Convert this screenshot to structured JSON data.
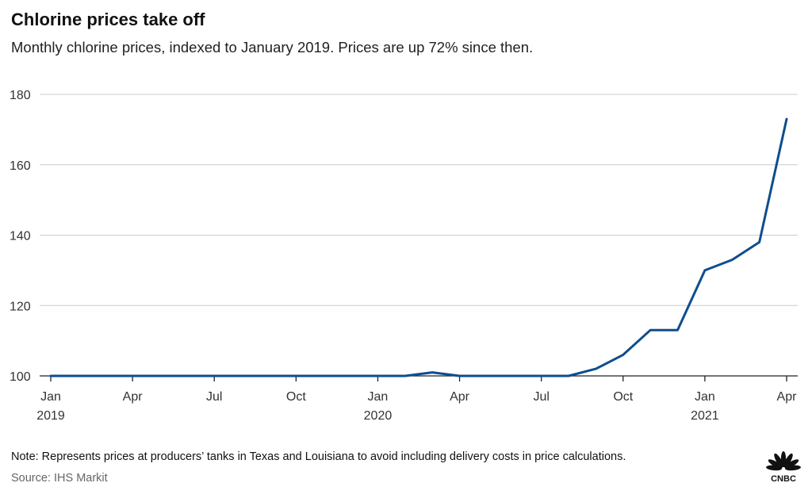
{
  "chart_data": {
    "type": "line",
    "title": "Chlorine prices take off",
    "subtitle": "Monthly chlorine prices, indexed to January 2019. Prices are up 72% since then.",
    "xlabel": "",
    "ylabel": "",
    "ylim": [
      100,
      180
    ],
    "yticks": [
      100,
      120,
      140,
      160,
      180
    ],
    "grid": true,
    "x_tick_labels": [
      {
        "label": "Jan",
        "sublabel": "2019",
        "index": 0
      },
      {
        "label": "Apr",
        "sublabel": "",
        "index": 3
      },
      {
        "label": "Jul",
        "sublabel": "",
        "index": 6
      },
      {
        "label": "Oct",
        "sublabel": "",
        "index": 9
      },
      {
        "label": "Jan",
        "sublabel": "2020",
        "index": 12
      },
      {
        "label": "Apr",
        "sublabel": "",
        "index": 15
      },
      {
        "label": "Jul",
        "sublabel": "",
        "index": 18
      },
      {
        "label": "Oct",
        "sublabel": "",
        "index": 21
      },
      {
        "label": "Jan",
        "sublabel": "2021",
        "index": 24
      },
      {
        "label": "Apr",
        "sublabel": "",
        "index": 27
      }
    ],
    "x": [
      "2019-01",
      "2019-02",
      "2019-03",
      "2019-04",
      "2019-05",
      "2019-06",
      "2019-07",
      "2019-08",
      "2019-09",
      "2019-10",
      "2019-11",
      "2019-12",
      "2020-01",
      "2020-02",
      "2020-03",
      "2020-04",
      "2020-05",
      "2020-06",
      "2020-07",
      "2020-08",
      "2020-09",
      "2020-10",
      "2020-11",
      "2020-12",
      "2021-01",
      "2021-02",
      "2021-03",
      "2021-04"
    ],
    "series": [
      {
        "values": [
          100,
          100,
          100,
          100,
          100,
          100,
          100,
          100,
          100,
          100,
          100,
          100,
          100,
          100,
          101,
          100,
          100,
          100,
          100,
          100,
          102,
          106,
          113,
          113,
          130,
          133,
          138,
          173
        ],
        "color": "#0e4d8e"
      }
    ],
    "note": "Note: Represents prices at producers’ tanks in Texas and Louisiana to avoid including delivery costs in price calculations.",
    "source": "Source: IHS Markit"
  },
  "branding": {
    "logo_icon": "cnbc-peacock-icon",
    "logo_text": "CNBC"
  }
}
